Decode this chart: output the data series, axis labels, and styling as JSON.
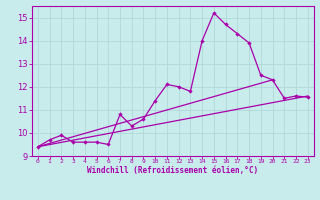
{
  "bg_color": "#c8ecec",
  "grid_color": "#b0d8d8",
  "line_color": "#aa00aa",
  "xlim": [
    -0.5,
    23.5
  ],
  "ylim": [
    9,
    15.5
  ],
  "yticks": [
    9,
    10,
    11,
    12,
    13,
    14,
    15
  ],
  "xticks": [
    0,
    1,
    2,
    3,
    4,
    5,
    6,
    7,
    8,
    9,
    10,
    11,
    12,
    13,
    14,
    15,
    16,
    17,
    18,
    19,
    20,
    21,
    22,
    23
  ],
  "xlabel": "Windchill (Refroidissement éolien,°C)",
  "line1_x": [
    0,
    1,
    2,
    3,
    4,
    5,
    6,
    7,
    8,
    9,
    10,
    11,
    12,
    13,
    14,
    15,
    16,
    17,
    18,
    19,
    20,
    21,
    22,
    23
  ],
  "line1_y": [
    9.4,
    9.7,
    9.9,
    9.6,
    9.6,
    9.6,
    9.5,
    10.8,
    10.3,
    10.6,
    11.4,
    12.1,
    12.0,
    11.8,
    14.0,
    15.2,
    14.7,
    14.3,
    13.9,
    12.5,
    12.3,
    11.5,
    11.6,
    11.55
  ],
  "line2_x": [
    0,
    23
  ],
  "line2_y": [
    9.4,
    11.6
  ],
  "line3_x": [
    0,
    20
  ],
  "line3_y": [
    9.4,
    12.3
  ]
}
